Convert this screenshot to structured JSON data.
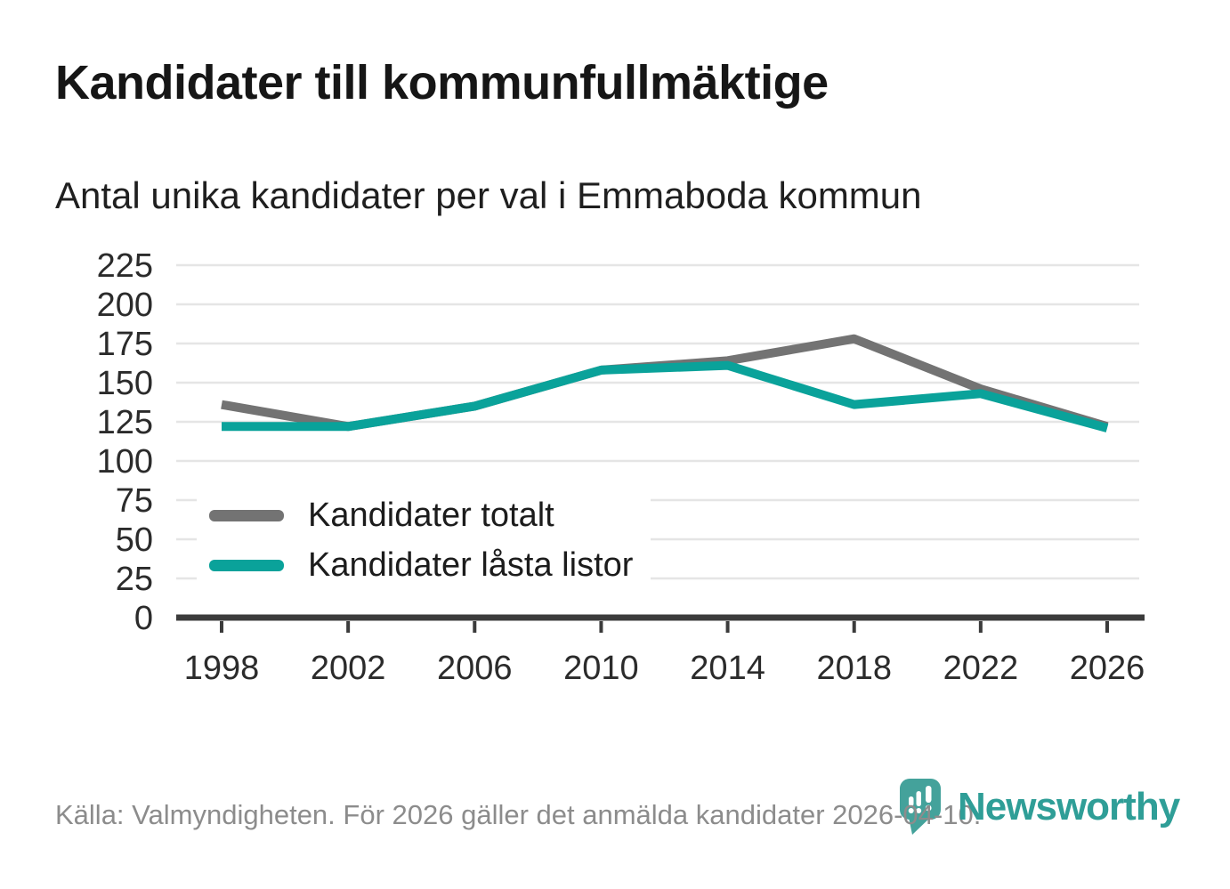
{
  "header": {
    "title": "Kandidater till kommunfullmäktige",
    "subtitle": "Antal unika kandidater per val i Emmaboda kommun"
  },
  "chart_data": {
    "type": "line",
    "x": [
      "1998",
      "2002",
      "2006",
      "2010",
      "2014",
      "2018",
      "2022",
      "2026"
    ],
    "series": [
      {
        "name": "Kandidater totalt",
        "color": "#737373",
        "values": [
          136,
          122,
          135,
          158,
          164,
          178,
          146,
          122
        ]
      },
      {
        "name": "Kandidater låsta listor",
        "color": "#0aa29a",
        "values": [
          122,
          122,
          135,
          158,
          161,
          136,
          143,
          121
        ]
      }
    ],
    "ylim": [
      0,
      225
    ],
    "ytick_step": 25,
    "grid": true,
    "legend_position": "inside-lower-left"
  },
  "footer": {
    "source": "Källa: Valmyndigheten. För 2026 gäller det anmälda kandidater 2026-04-10.",
    "brand": "Newsworthy"
  },
  "colors": {
    "line_gray": "#737373",
    "line_teal": "#0aa29a",
    "grid": "#e5e5e5",
    "axis": "#3b3b3b",
    "tick_label": "#2b2b2b",
    "title_text": "#161616",
    "source_text": "#8c8c8c",
    "logo_teal": "#44a29b",
    "wordmark_teal": "#2f9e97"
  }
}
